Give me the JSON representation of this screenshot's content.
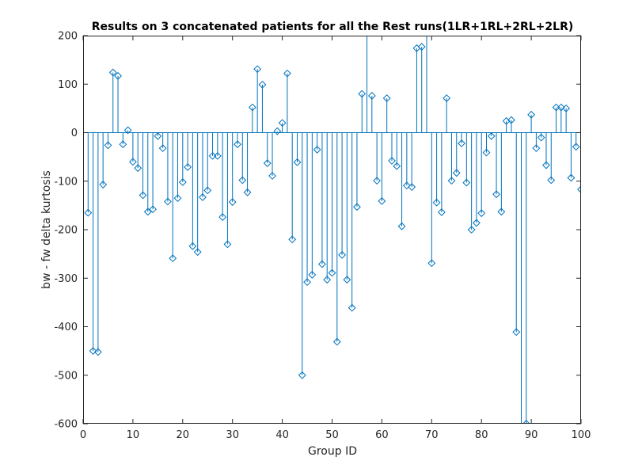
{
  "chart_data": {
    "type": "stem",
    "title": "Results on 3 concatenated patients for all the Rest runs(1LR+1RL+2RL+2LR)",
    "xlabel": "Group ID",
    "ylabel": "bw - fw delta kurtosis",
    "xlim": [
      0,
      100
    ],
    "ylim": [
      -600,
      200
    ],
    "xticks": [
      0,
      10,
      20,
      30,
      40,
      50,
      60,
      70,
      80,
      90,
      100
    ],
    "yticks": [
      200,
      100,
      0,
      -100,
      -200,
      -300,
      -400,
      -500,
      -600
    ],
    "grid": false,
    "baseline": 0,
    "color": "#0072BD",
    "marker": "diamond",
    "x": [
      1,
      2,
      3,
      4,
      5,
      6,
      7,
      8,
      9,
      10,
      11,
      12,
      13,
      14,
      15,
      16,
      17,
      18,
      19,
      20,
      21,
      22,
      23,
      24,
      25,
      26,
      27,
      28,
      29,
      30,
      31,
      32,
      33,
      34,
      35,
      36,
      37,
      38,
      39,
      40,
      41,
      42,
      43,
      44,
      45,
      46,
      47,
      48,
      49,
      50,
      51,
      52,
      53,
      54,
      55,
      56,
      57,
      58,
      59,
      60,
      61,
      62,
      63,
      64,
      65,
      66,
      67,
      68,
      69,
      70,
      71,
      72,
      73,
      74,
      75,
      76,
      77,
      78,
      79,
      80,
      81,
      82,
      83,
      84,
      85,
      86,
      87,
      88,
      89,
      90,
      91,
      92,
      93,
      94,
      95,
      96,
      97,
      98,
      99,
      100
    ],
    "y": [
      -165,
      -450,
      -452,
      -107,
      -26,
      124,
      117,
      -24,
      5,
      -60,
      -73,
      -129,
      -163,
      -158,
      -7,
      -32,
      -142,
      -259,
      -135,
      -102,
      -71,
      -234,
      -246,
      -133,
      -119,
      -48,
      -48,
      -174,
      -230,
      -143,
      -24,
      -98,
      -123,
      52,
      131,
      99,
      -63,
      -89,
      3,
      20,
      122,
      -220,
      -61,
      -500,
      -308,
      -293,
      -35,
      -271,
      -303,
      -289,
      -431,
      -252,
      -303,
      -361,
      -153,
      80,
      210,
      76,
      -99,
      -141,
      71,
      -58,
      -69,
      -193,
      -109,
      -112,
      174,
      177,
      215,
      -269,
      -144,
      -164,
      71,
      -99,
      -83,
      -22,
      -103,
      -200,
      -186,
      -166,
      -41,
      -7,
      -127,
      -163,
      24,
      26,
      -411,
      -610,
      -600,
      37,
      -32,
      -10,
      -67,
      -98,
      52,
      52,
      50,
      -93,
      -29,
      -117
    ]
  }
}
